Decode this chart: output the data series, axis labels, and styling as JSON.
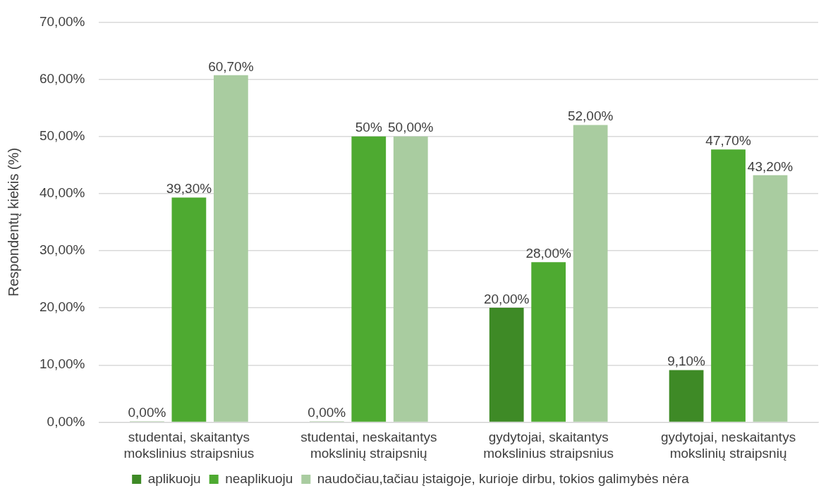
{
  "chart_data": {
    "type": "bar",
    "ylabel": "Respondentų kiekis (%)",
    "categories": [
      "studentai, skaitantys mokslinius straipsnius",
      "studentai, neskaitantys mokslinių straipsnių",
      "gydytojai, skaitantys mokslinius straipsnius",
      "gydytojai, neskaitantys mokslinių straipsnių"
    ],
    "series": [
      {
        "name": "aplikuoju",
        "color": "#3e8a26",
        "values": [
          0,
          0,
          20,
          9.1
        ],
        "value_labels": [
          "0,00%",
          "0,00%",
          "20,00%",
          "9,10%"
        ]
      },
      {
        "name": "neaplikuoju",
        "color": "#4eaa31",
        "values": [
          39.3,
          50,
          28,
          47.7
        ],
        "value_labels": [
          "39,30%",
          "50%",
          "28,00%",
          "47,70%"
        ]
      },
      {
        "name": "naudočiau,tačiau įstaigoje, kurioje dirbu, tokios galimybės nėra",
        "color": "#a9cca0",
        "values": [
          60.7,
          50,
          52,
          43.2
        ],
        "value_labels": [
          "60,70%",
          "50,00%",
          "52,00%",
          "43,20%"
        ]
      }
    ],
    "ylim": [
      0,
      70
    ],
    "yticks": [
      {
        "value": 0,
        "label": "0,00%"
      },
      {
        "value": 10,
        "label": "10,00%"
      },
      {
        "value": 20,
        "label": "20,00%"
      },
      {
        "value": 30,
        "label": "30,00%"
      },
      {
        "value": 40,
        "label": "40,00%"
      },
      {
        "value": 50,
        "label": "50,00%"
      },
      {
        "value": 60,
        "label": "60,00%"
      },
      {
        "value": 70,
        "label": "70,00%"
      }
    ],
    "grid": "y",
    "legend": "bottom"
  }
}
